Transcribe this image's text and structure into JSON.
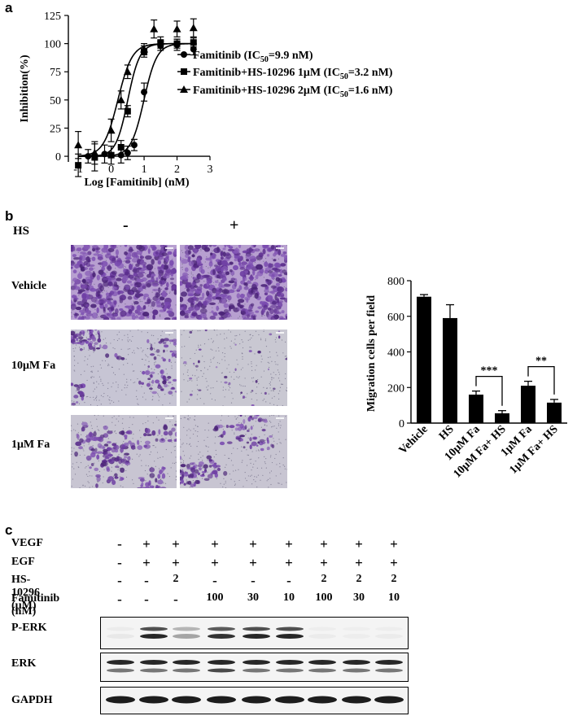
{
  "panel_a": {
    "letter": "a",
    "chart_data": {
      "type": "scatter",
      "xlabel": "Log [Famitinib] (nM)",
      "ylabel": "Inhibition(%)",
      "xlim": [
        -1.3,
        3
      ],
      "ylim": [
        -5,
        125
      ],
      "xticks": [
        "-1",
        "0",
        "1",
        "2",
        "3"
      ],
      "yticks": [
        "0",
        "25",
        "50",
        "75",
        "100",
        "125"
      ],
      "legend_placement": "right",
      "series": [
        {
          "name": "Famitinib (IC",
          "ic_sub": "50",
          "ic_val": "=9.9 nM)",
          "marker": "circle",
          "ic50_log": 0.996,
          "hill": 2.2,
          "x": [
            -0.7,
            -0.2,
            0.3,
            0.5,
            0.7,
            1.0,
            1.5,
            2.0,
            2.5
          ],
          "y": [
            0,
            2,
            1,
            3,
            10,
            57,
            98,
            99,
            95
          ],
          "err": [
            6,
            8,
            7,
            6,
            5,
            8,
            4,
            5,
            5
          ]
        },
        {
          "name": "Famitinib+HS-10296 1μM (IC",
          "ic_sub": "50",
          "ic_val": "=3.2 nM)",
          "marker": "square",
          "ic50_log": 0.505,
          "hill": 2.4,
          "x": [
            -1.0,
            -0.5,
            0.0,
            0.3,
            0.5,
            1.0,
            1.5,
            2.0,
            2.5
          ],
          "y": [
            -8,
            -1,
            1,
            8,
            40,
            93,
            101,
            100,
            101
          ],
          "err": [
            10,
            12,
            8,
            6,
            5,
            5,
            5,
            4,
            4
          ]
        },
        {
          "name": "Famitinib+HS-10296 2μM (IC",
          "ic_sub": "50",
          "ic_val": "=1.6 nM)",
          "marker": "triangle",
          "ic50_log": 0.204,
          "hill": 2.0,
          "x": [
            -1.0,
            -0.5,
            0.0,
            0.3,
            0.5,
            1.0,
            1.3,
            2.0,
            2.5
          ],
          "y": [
            10,
            3,
            23,
            50,
            75,
            95,
            113,
            113,
            114
          ],
          "err": [
            12,
            10,
            10,
            8,
            6,
            5,
            8,
            7,
            8
          ]
        }
      ]
    }
  },
  "panel_b": {
    "letter": "b",
    "hs_label": "HS",
    "col_minus": "-",
    "col_plus": "+",
    "rows": [
      {
        "label": "Vehicle"
      },
      {
        "label": "10μM Fa"
      },
      {
        "label": "1μM Fa"
      }
    ],
    "chart_data": {
      "type": "bar",
      "ylabel": "Migration cells per field",
      "ylim": [
        0,
        800
      ],
      "yticks": [
        "0",
        "200",
        "400",
        "600",
        "800"
      ],
      "categories": [
        "Vehicle",
        "HS",
        "10μM Fa",
        "10μM Fa+ HS",
        "1μM Fa",
        "1μM Fa+ HS"
      ],
      "values": [
        710,
        590,
        160,
        55,
        210,
        115
      ],
      "errors": [
        12,
        75,
        20,
        15,
        25,
        18
      ],
      "significance": [
        {
          "pair": [
            2,
            3
          ],
          "label": "***"
        },
        {
          "pair": [
            4,
            5
          ],
          "label": "**"
        }
      ],
      "color": "#000000"
    }
  },
  "panel_c": {
    "letter": "c",
    "conditions": [
      {
        "label": "VEGF",
        "values": [
          "-",
          "+",
          "+",
          "+",
          "+",
          "+",
          "+",
          "+",
          "+"
        ]
      },
      {
        "label": "EGF",
        "values": [
          "-",
          "+",
          "+",
          "+",
          "+",
          "+",
          "+",
          "+",
          "+"
        ]
      },
      {
        "label": "HS-10296 (μM)",
        "values": [
          "-",
          "-",
          "2",
          "-",
          "-",
          "-",
          "2",
          "2",
          "2"
        ]
      },
      {
        "label": "Famitinib (nM)",
        "values": [
          "-",
          "-",
          "-",
          "100",
          "30",
          "10",
          "100",
          "30",
          "10"
        ]
      }
    ],
    "blots": [
      {
        "label": "P-ERK"
      },
      {
        "label": "ERK"
      },
      {
        "label": "GAPDH"
      }
    ]
  }
}
